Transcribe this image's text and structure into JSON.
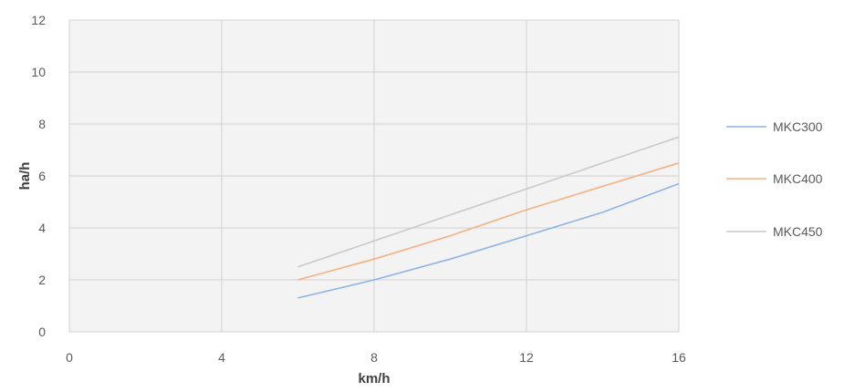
{
  "colors": {
    "plot_background": "#f3f3f3",
    "grid": "#d2d2d2",
    "axis_text": "#595959",
    "axis_title": "#404040"
  },
  "chart_data": {
    "type": "line",
    "title": "",
    "xlabel": "km/h",
    "ylabel": "ha/h",
    "xlim": [
      0,
      16
    ],
    "ylim": [
      0,
      12
    ],
    "xticks": [
      0,
      4,
      8,
      12,
      16
    ],
    "yticks": [
      0,
      2,
      4,
      6,
      8,
      10,
      12
    ],
    "grid": true,
    "legend_position": "right",
    "series": [
      {
        "name": "MKC300",
        "color": "#8eb4e3",
        "x": [
          6,
          8,
          10,
          12,
          14,
          16
        ],
        "y": [
          1.3,
          2.0,
          2.8,
          3.7,
          4.6,
          5.7
        ]
      },
      {
        "name": "MKC400",
        "color": "#f5b183",
        "x": [
          6,
          8,
          10,
          12,
          14,
          16
        ],
        "y": [
          2.0,
          2.8,
          3.7,
          4.7,
          5.6,
          6.5
        ]
      },
      {
        "name": "MKC450",
        "color": "#c9c9c9",
        "x": [
          6,
          8,
          10,
          12,
          14,
          16
        ],
        "y": [
          2.5,
          3.5,
          4.5,
          5.5,
          6.5,
          7.5
        ]
      }
    ]
  }
}
